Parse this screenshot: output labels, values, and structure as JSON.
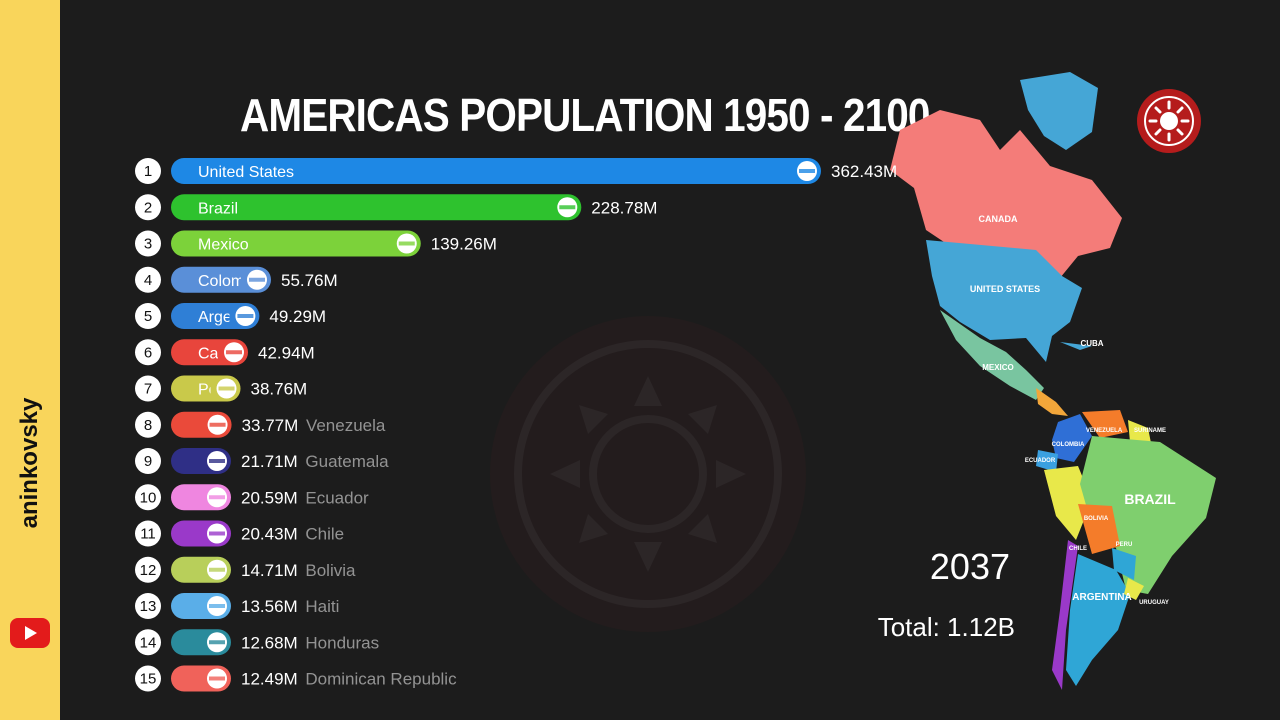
{
  "channel": {
    "name": "aninkovsky",
    "icon": "youtube-icon"
  },
  "chart_data": {
    "type": "bar",
    "orientation": "horizontal",
    "title": "AMERICAS POPULATION 1950 - 2100",
    "unit": "M",
    "year": "2037",
    "total": "Total: 1.12B",
    "bars": [
      {
        "rank": "1",
        "name": "United States",
        "value": 362.43,
        "label": "362.43M",
        "color": "#1e88e5",
        "flag": "us-flag-icon",
        "name_inside": true
      },
      {
        "rank": "2",
        "name": "Brazil",
        "value": 228.78,
        "label": "228.78M",
        "color": "#2ec22e",
        "flag": "brazil-flag-icon",
        "name_inside": true
      },
      {
        "rank": "3",
        "name": "Mexico",
        "value": 139.26,
        "label": "139.26M",
        "color": "#7cd23a",
        "flag": "mexico-flag-icon",
        "name_inside": true
      },
      {
        "rank": "4",
        "name": "Colombia",
        "value": 55.76,
        "label": "55.76M",
        "color": "#5a8fd8",
        "flag": "colombia-flag-icon",
        "name_inside": true
      },
      {
        "rank": "5",
        "name": "Argentina",
        "value": 49.29,
        "label": "49.29M",
        "color": "#2f7fd6",
        "flag": "argentina-flag-icon",
        "name_inside": true
      },
      {
        "rank": "6",
        "name": "Canada",
        "value": 42.94,
        "label": "42.94M",
        "color": "#e8453c",
        "flag": "canada-flag-icon",
        "name_inside": true
      },
      {
        "rank": "7",
        "name": "Peru",
        "value": 38.76,
        "label": "38.76M",
        "color": "#c9c94a",
        "flag": "peru-flag-icon",
        "name_inside": true
      },
      {
        "rank": "8",
        "name": "Venezuela",
        "value": 33.77,
        "label": "33.77M",
        "color": "#ea4a3a",
        "flag": "venezuela-flag-icon",
        "name_inside": false
      },
      {
        "rank": "9",
        "name": "Guatemala",
        "value": 21.71,
        "label": "21.71M",
        "color": "#2f2f86",
        "flag": "guatemala-flag-icon",
        "name_inside": false
      },
      {
        "rank": "10",
        "name": "Ecuador",
        "value": 20.59,
        "label": "20.59M",
        "color": "#ef86e0",
        "flag": "ecuador-flag-icon",
        "name_inside": false
      },
      {
        "rank": "11",
        "name": "Chile",
        "value": 20.43,
        "label": "20.43M",
        "color": "#9a39c9",
        "flag": "chile-flag-icon",
        "name_inside": false
      },
      {
        "rank": "12",
        "name": "Bolivia",
        "value": 14.71,
        "label": "14.71M",
        "color": "#b8cf5a",
        "flag": "bolivia-flag-icon",
        "name_inside": false
      },
      {
        "rank": "13",
        "name": "Haiti",
        "value": 13.56,
        "label": "13.56M",
        "color": "#5aaee8",
        "flag": "haiti-flag-icon",
        "name_inside": false
      },
      {
        "rank": "14",
        "name": "Honduras",
        "value": 12.68,
        "label": "12.68M",
        "color": "#2a8b9c",
        "flag": "honduras-flag-icon",
        "name_inside": false
      },
      {
        "rank": "15",
        "name": "Dominican Republic",
        "value": 12.49,
        "label": "12.49M",
        "color": "#f0625a",
        "flag": "dominican-republic-flag-icon",
        "name_inside": false
      }
    ]
  },
  "map": {
    "labels": [
      "CANADA",
      "UNITED STATES",
      "CUBA",
      "MEXICO",
      "COLOMBIA",
      "VENEZUELA",
      "SURINAME",
      "ECUADOR",
      "BRAZIL",
      "PERU",
      "BOLIVIA",
      "CHILE",
      "ARGENTINA",
      "URUGUAY"
    ],
    "colors": {
      "canada": "#f47c79",
      "usa": "#45a6d6",
      "mexico": "#79c5a0",
      "brazil": "#7fcf6e",
      "argentina": "#2fa6d6"
    }
  }
}
